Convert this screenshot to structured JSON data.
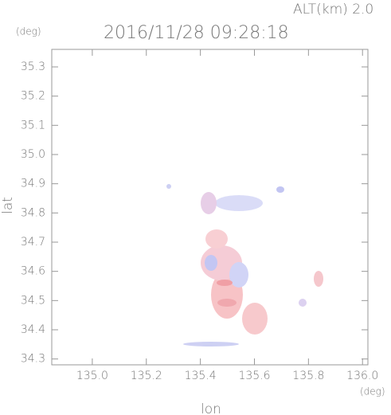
{
  "chart_data": {
    "type": "map",
    "title": "2016/11/28 09:28:18",
    "subtitle": "ALT(km) 2.0",
    "xlabel": "lon",
    "ylabel": "lat",
    "xunit": "(deg)",
    "yunit": "(deg)",
    "xlim": [
      134.85,
      136.02
    ],
    "ylim": [
      34.28,
      35.36
    ],
    "xticks": [
      {
        "value": 135.0,
        "label": "135.0"
      },
      {
        "value": 135.2,
        "label": "135.2"
      },
      {
        "value": 135.4,
        "label": "135.4"
      },
      {
        "value": 135.6,
        "label": "135.6"
      },
      {
        "value": 135.8,
        "label": "135.8"
      },
      {
        "value": 136.0,
        "label": "136.0"
      }
    ],
    "yticks": [
      {
        "value": 34.3,
        "label": "34.3"
      },
      {
        "value": 34.4,
        "label": "34.4"
      },
      {
        "value": 34.5,
        "label": "34.5"
      },
      {
        "value": 34.6,
        "label": "34.6"
      },
      {
        "value": 34.7,
        "label": "34.7"
      },
      {
        "value": 34.8,
        "label": "34.8"
      },
      {
        "value": 34.9,
        "label": "34.9"
      },
      {
        "value": 35.0,
        "label": "35.0"
      },
      {
        "value": 35.1,
        "label": "35.1"
      },
      {
        "value": 35.2,
        "label": "35.2"
      },
      {
        "value": 35.3,
        "label": "35.3"
      }
    ]
  }
}
